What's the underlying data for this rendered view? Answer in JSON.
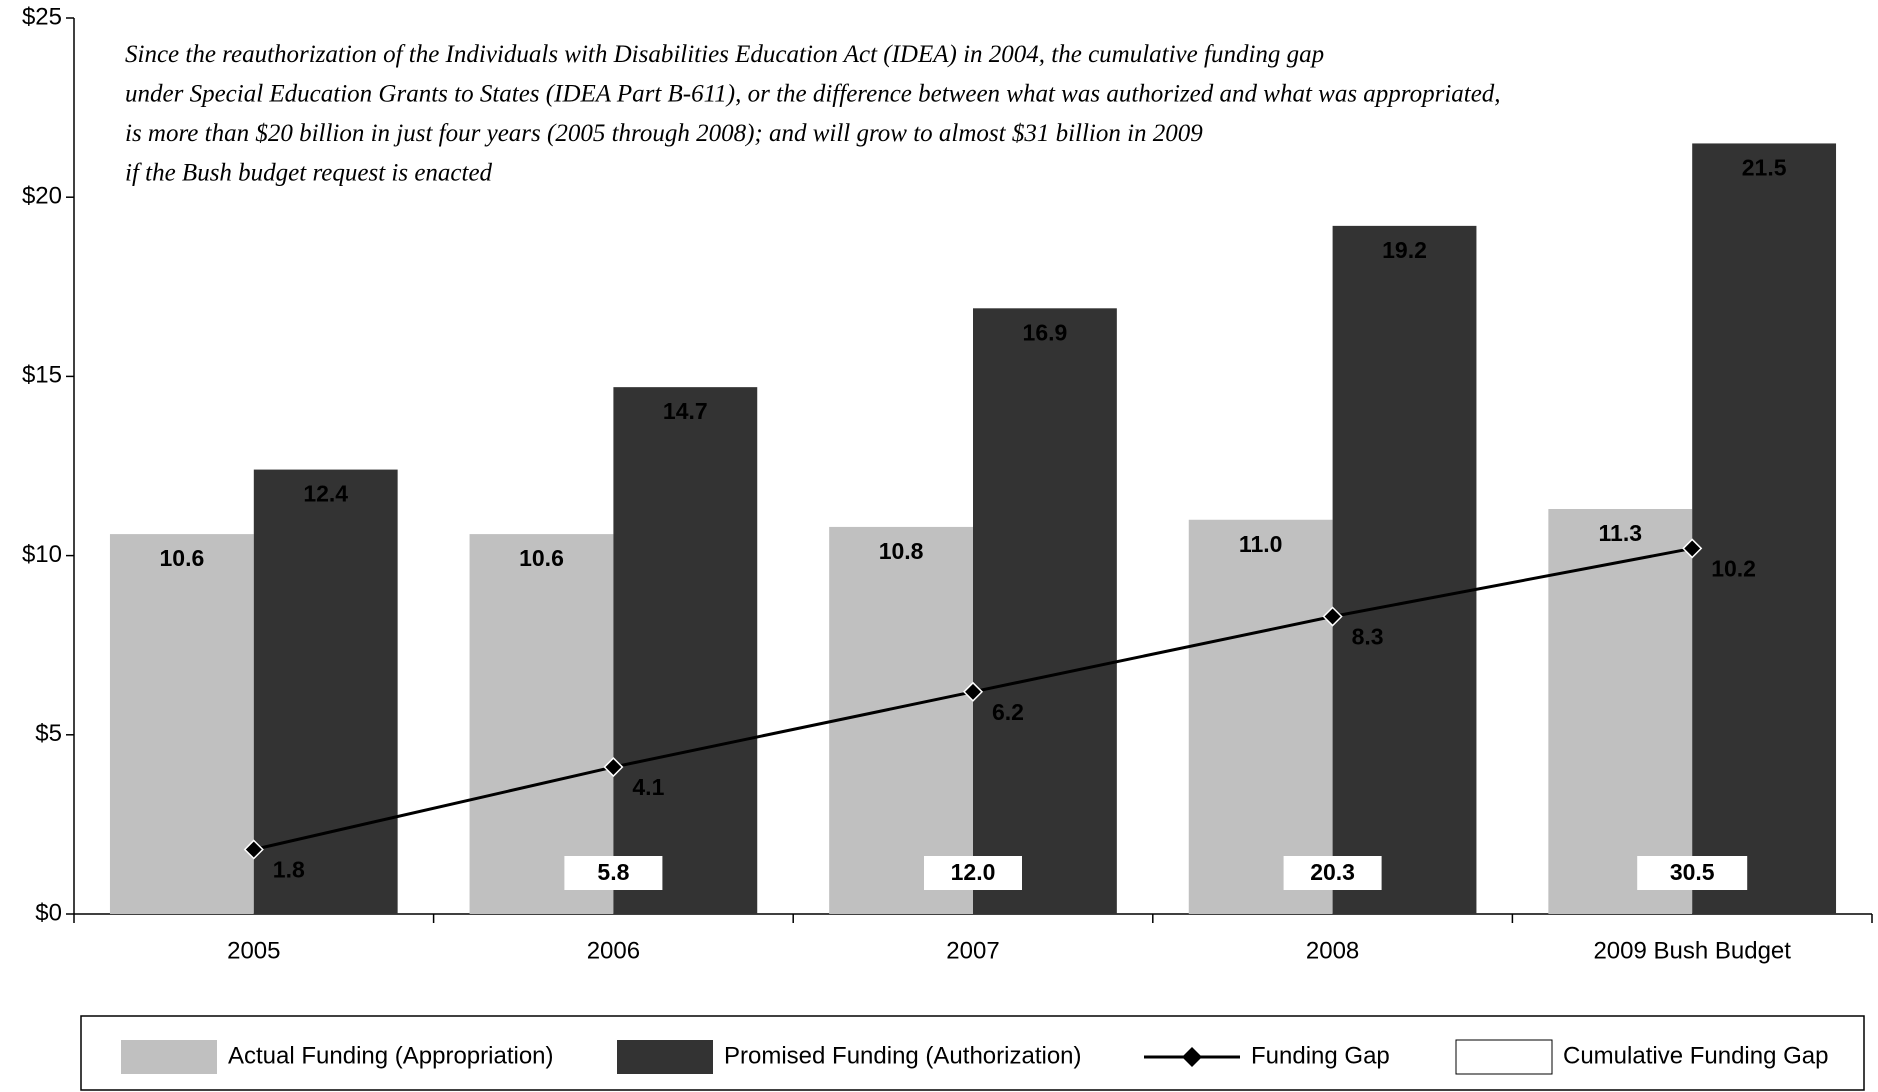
{
  "chart_data": {
    "type": "bar",
    "annotation": [
      "Since the reauthorization of the Individuals with Disabilities Education Act (IDEA) in 2004, the cumulative funding gap",
      "under Special Education Grants to States (IDEA Part B-611), or the difference between what was authorized and what was appropriated,",
      "is more than $20 billion in just four years (2005 through 2008); and will grow to almost $31 billion in 2009",
      "if the Bush budget request is enacted"
    ],
    "categories": [
      "2005",
      "2006",
      "2007",
      "2008",
      "2009 Bush Budget"
    ],
    "series": [
      {
        "name": "Actual Funding (Appropriation)",
        "type": "bar",
        "color": "#c0c0c0",
        "values": [
          10.6,
          10.6,
          10.8,
          11.0,
          11.3
        ],
        "value_labels": [
          "10.6",
          "10.6",
          "10.8",
          "11.0",
          "11.3"
        ]
      },
      {
        "name": "Promised Funding (Authorization)",
        "type": "bar",
        "color": "#333333",
        "values": [
          12.4,
          14.7,
          16.9,
          19.2,
          21.5
        ]
      },
      {
        "name": "Funding Gap",
        "type": "line",
        "color": "#000000",
        "values": [
          1.8,
          4.1,
          6.2,
          8.3,
          10.2
        ]
      },
      {
        "name": "Cumulative Funding Gap",
        "type": "box",
        "color": "#ffffff",
        "values": [
          null,
          5.8,
          12.0,
          20.3,
          30.5
        ],
        "value_labels": [
          null,
          "5.8",
          "12.0",
          "20.3",
          "30.5"
        ]
      }
    ],
    "ylim": [
      0,
      25
    ],
    "yticks": [
      {
        "value": 0,
        "label": "$0"
      },
      {
        "value": 5,
        "label": "$5"
      },
      {
        "value": 10,
        "label": "$10"
      },
      {
        "value": 15,
        "label": "$15"
      },
      {
        "value": 20,
        "label": "$20"
      },
      {
        "value": 25,
        "label": "$25"
      }
    ]
  }
}
